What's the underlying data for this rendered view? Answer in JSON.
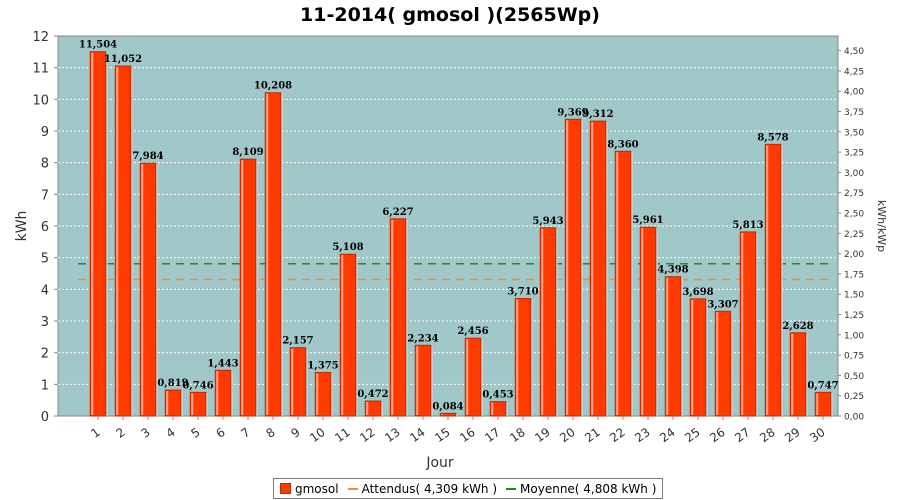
{
  "chart_data": {
    "type": "bar",
    "title": "11-2014( gmosol )(2565Wp)",
    "xlabel": "Jour",
    "ylabel": "kWh",
    "y2label": "kWh/kWp",
    "ylim": [
      0,
      12
    ],
    "y2lim": [
      0,
      4.68
    ],
    "categories": [
      "1",
      "2",
      "3",
      "4",
      "5",
      "6",
      "7",
      "8",
      "9",
      "10",
      "11",
      "12",
      "13",
      "14",
      "15",
      "16",
      "17",
      "18",
      "19",
      "20",
      "21",
      "22",
      "23",
      "24",
      "25",
      "26",
      "27",
      "28",
      "29",
      "30"
    ],
    "series": [
      {
        "name": "gmosol",
        "values": [
          11.504,
          11.052,
          7.984,
          0.819,
          0.746,
          1.443,
          8.109,
          10.208,
          2.157,
          1.375,
          5.108,
          0.472,
          6.227,
          2.234,
          0.084,
          2.456,
          0.453,
          3.71,
          5.943,
          9.369,
          9.312,
          8.36,
          5.961,
          4.398,
          3.698,
          3.307,
          5.813,
          8.578,
          2.628,
          0.747
        ]
      }
    ],
    "data_labels": [
      "11,504",
      "11,052",
      "7,984",
      "0,819",
      "0,746",
      "1,443",
      "8,109",
      "10,208",
      "2,157",
      "1,375",
      "5,108",
      "0,472",
      "6,227",
      "2,234",
      "0,084",
      "2,456",
      "0,453",
      "3,710",
      "5,943",
      "9,369",
      "9,312",
      "8,360",
      "5,961",
      "4,398",
      "3,698",
      "3,307",
      "5,813",
      "8,578",
      "2,628",
      "0,747"
    ],
    "reference_lines": [
      {
        "name": "Attendus( 4,309 kWh )",
        "value": 4.309,
        "color": "#ff8c1a",
        "style": "dashed"
      },
      {
        "name": "Moyenne( 4,808 kWh )",
        "value": 4.808,
        "color": "#1e8f1e",
        "style": "dashed"
      }
    ],
    "yticks": [
      "0",
      "1",
      "2",
      "3",
      "4",
      "5",
      "6",
      "7",
      "8",
      "9",
      "10",
      "11",
      "12"
    ],
    "y2ticks": [
      "0,00",
      "0,25",
      "0,50",
      "0,75",
      "1,00",
      "1,25",
      "1,50",
      "1,75",
      "2,00",
      "2,25",
      "2,50",
      "2,75",
      "3,00",
      "3,25",
      "3,50",
      "3,75",
      "4,00",
      "4,25",
      "4,50"
    ],
    "grid": true,
    "legend_position": "bottom",
    "colors": {
      "bar": "#ff3a00",
      "bar_edge": "#c02a00",
      "plot_bg": "#a0c8c8",
      "grid": "#ffffff"
    }
  },
  "legend": {
    "series_label": "gmosol",
    "expected_label": "Attendus( 4,309 kWh )",
    "average_label": "Moyenne( 4,808 kWh )"
  }
}
